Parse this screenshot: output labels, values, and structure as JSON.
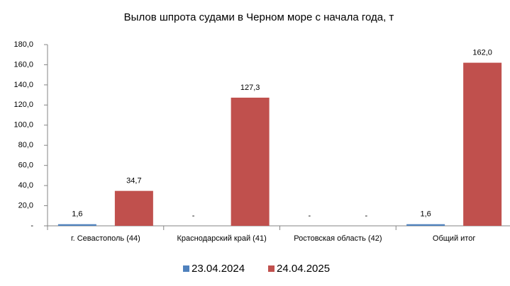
{
  "chart_data": {
    "type": "bar",
    "title": "Вылов шпрота судами в Черном море с начала  года, т",
    "categories": [
      "г. Севастополь (44)",
      "Краснодарский край (41)",
      "Ростовская область (42)",
      "Общий итог"
    ],
    "series": [
      {
        "name": "23.04.2024",
        "color": "#4f81bd",
        "values": [
          1.6,
          null,
          null,
          1.6
        ],
        "value_labels": [
          "1,6",
          "-",
          "-",
          "1,6"
        ]
      },
      {
        "name": "24.04.2025",
        "color": "#c0504d",
        "values": [
          34.7,
          127.3,
          null,
          162.0
        ],
        "value_labels": [
          "34,7",
          "127,3",
          "-",
          "162,0"
        ]
      }
    ],
    "ylim": [
      0,
      180
    ],
    "yticks": [
      {
        "value": 0,
        "label": "-"
      },
      {
        "value": 20,
        "label": "20,0"
      },
      {
        "value": 40,
        "label": "40,0"
      },
      {
        "value": 60,
        "label": "60,0"
      },
      {
        "value": 80,
        "label": "80,0"
      },
      {
        "value": 100,
        "label": "100,0"
      },
      {
        "value": 120,
        "label": "120,0"
      },
      {
        "value": 140,
        "label": "140,0"
      },
      {
        "value": 160,
        "label": "160,0"
      },
      {
        "value": 180,
        "label": "180,0"
      }
    ],
    "grid": false,
    "legend": "bottom"
  }
}
